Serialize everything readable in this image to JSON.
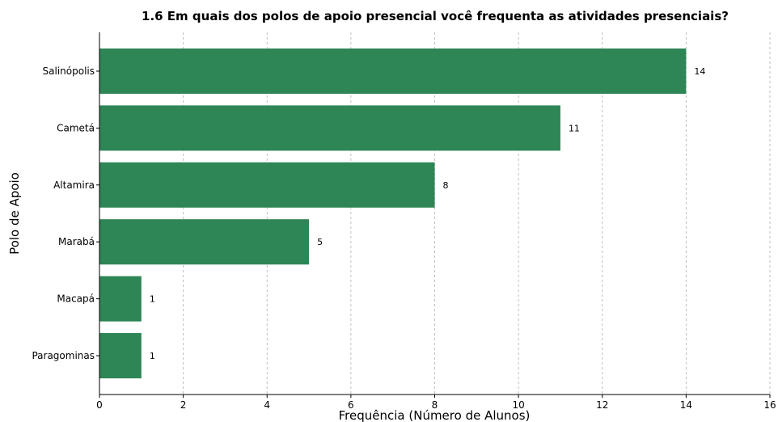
{
  "chart_data": {
    "type": "bar",
    "orientation": "horizontal",
    "title": "1.6 Em quais dos polos de apoio presencial você frequenta as atividades presenciais?",
    "xlabel": "Frequência (Número de Alunos)",
    "ylabel": "Polo de Apoio",
    "categories": [
      "Salinópolis",
      "Cametá",
      "Altamira",
      "Marabá",
      "Macapá",
      "Paragominas"
    ],
    "values": [
      14,
      11,
      8,
      5,
      1,
      1
    ],
    "xlim": [
      0,
      16
    ],
    "xticks": [
      0,
      2,
      4,
      6,
      8,
      10,
      12,
      14,
      16
    ],
    "grid": "vertical dashed",
    "legend": "none",
    "bar_color": "#2e8555"
  }
}
